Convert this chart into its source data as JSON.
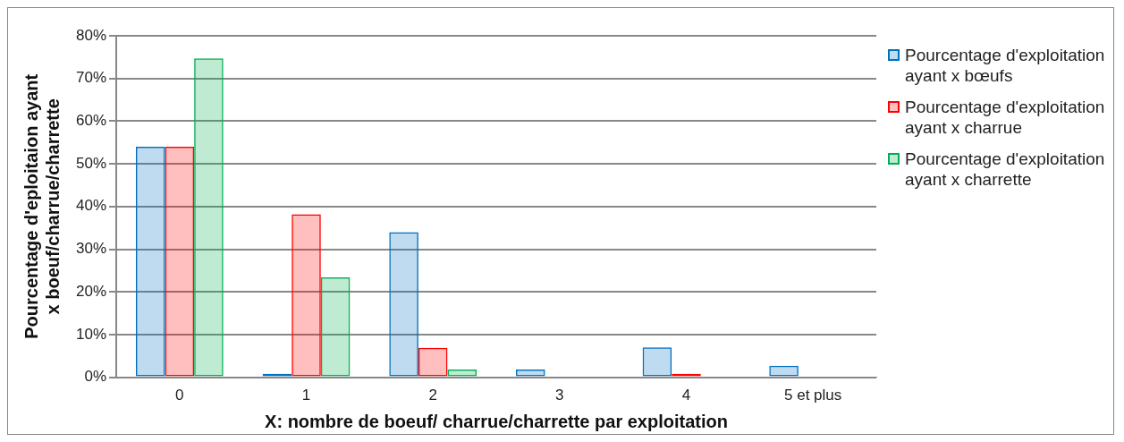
{
  "chart_data": {
    "type": "bar",
    "xlabel": "X: nombre de boeuf/ charrue/charrette par exploitation",
    "ylabel": "Pourcentage d'eploitaion ayant x boeuf/charrue/charrette",
    "categories": [
      "0",
      "1",
      "2",
      "3",
      "4",
      "5 et plus"
    ],
    "series": [
      {
        "name": "Pourcentage d'exploitation ayant x bœufs",
        "color": "#0070c0",
        "values": [
          54,
          0.8,
          34,
          1.8,
          7,
          2.7
        ]
      },
      {
        "name": "Pourcentage d'exploitation ayant x charrue",
        "color": "#ff0000",
        "values": [
          54,
          38.2,
          6.9,
          0,
          0.8,
          0
        ]
      },
      {
        "name": "Pourcentage d'exploitation ayant x charrette",
        "color": "#00b050",
        "values": [
          74.7,
          23.4,
          1.8,
          0,
          0,
          0
        ]
      }
    ],
    "ylim": [
      0,
      80
    ],
    "yticks": [
      {
        "value": 0,
        "label": "0%"
      },
      {
        "value": 10,
        "label": "10%"
      },
      {
        "value": 20,
        "label": "20%"
      },
      {
        "value": 30,
        "label": "30%"
      },
      {
        "value": 40,
        "label": "40%"
      },
      {
        "value": 50,
        "label": "50%"
      },
      {
        "value": 60,
        "label": "60%"
      },
      {
        "value": 70,
        "label": "70%"
      },
      {
        "value": 80,
        "label": "80%"
      }
    ],
    "grid": "y",
    "legend": "right"
  }
}
